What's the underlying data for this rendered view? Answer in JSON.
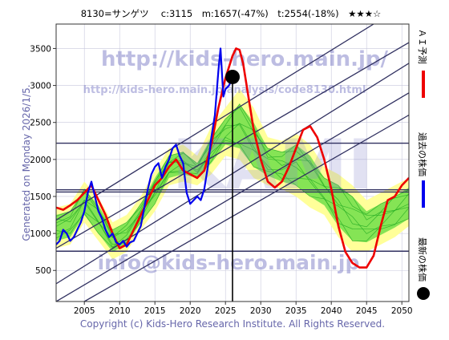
{
  "chart_data": {
    "type": "line",
    "title": "8130=サンゲツ　 c:3115　m:1657(-47%)　t:2554(-18%)　★★★☆",
    "xlabel": "",
    "ylabel": "",
    "x_ticks": [
      2005,
      2010,
      2015,
      2020,
      2025,
      2030,
      2035,
      2040,
      2045,
      2050
    ],
    "y_ticks": [
      500,
      1000,
      1500,
      2000,
      2500,
      3000,
      3500
    ],
    "xlim": [
      2001,
      2051
    ],
    "ylim": [
      80,
      3830
    ],
    "grid": true,
    "legend": "right",
    "current_point": {
      "x": 2026.0,
      "y": 3115
    },
    "current_marker_line": {
      "x": 2026.0
    },
    "horizontal_levels": [
      2220,
      1590,
      1560,
      760
    ],
    "diagonal_channels": [
      {
        "from": [
          2001,
          1180
        ],
        "to": [
          2046,
          3830
        ]
      },
      {
        "from": [
          2001,
          800
        ],
        "to": [
          2051,
          3580
        ]
      },
      {
        "from": [
          2001,
          320
        ],
        "to": [
          2051,
          3300
        ]
      },
      {
        "from": [
          2001,
          80
        ],
        "to": [
          2051,
          2900
        ]
      },
      {
        "from": [
          2005,
          80
        ],
        "to": [
          2051,
          2600
        ]
      }
    ],
    "band_range": [
      [
        2001,
        800,
        1350
      ],
      [
        2003,
        850,
        1400
      ],
      [
        2005,
        1150,
        1700
      ],
      [
        2007,
        900,
        1480
      ],
      [
        2009,
        650,
        1150
      ],
      [
        2011,
        750,
        1250
      ],
      [
        2013,
        1050,
        1500
      ],
      [
        2015,
        1300,
        1850
      ],
      [
        2017,
        1650,
        2150
      ],
      [
        2019,
        1700,
        2200
      ],
      [
        2021,
        1650,
        2050
      ],
      [
        2023,
        1800,
        2450
      ],
      [
        2025,
        2050,
        2700
      ],
      [
        2027,
        2000,
        2950
      ],
      [
        2029,
        1750,
        2700
      ],
      [
        2031,
        1650,
        2300
      ],
      [
        2033,
        1600,
        2250
      ],
      [
        2035,
        1500,
        2350
      ],
      [
        2037,
        1350,
        2200
      ],
      [
        2039,
        1250,
        1900
      ],
      [
        2041,
        950,
        1800
      ],
      [
        2043,
        750,
        1650
      ],
      [
        2045,
        750,
        1450
      ],
      [
        2047,
        850,
        1550
      ],
      [
        2049,
        950,
        1650
      ],
      [
        2051,
        1100,
        1750
      ]
    ],
    "band_core": [
      [
        2001,
        900,
        1250
      ],
      [
        2003,
        950,
        1300
      ],
      [
        2005,
        1250,
        1600
      ],
      [
        2007,
        1000,
        1380
      ],
      [
        2009,
        750,
        1050
      ],
      [
        2011,
        850,
        1150
      ],
      [
        2013,
        1150,
        1400
      ],
      [
        2015,
        1400,
        1750
      ],
      [
        2017,
        1750,
        2050
      ],
      [
        2019,
        1800,
        2100
      ],
      [
        2021,
        1750,
        1950
      ],
      [
        2023,
        1950,
        2300
      ],
      [
        2025,
        2200,
        2550
      ],
      [
        2027,
        2150,
        2750
      ],
      [
        2029,
        1900,
        2500
      ],
      [
        2031,
        1780,
        2150
      ],
      [
        2033,
        1700,
        2100
      ],
      [
        2035,
        1650,
        2200
      ],
      [
        2037,
        1500,
        2050
      ],
      [
        2039,
        1380,
        1750
      ],
      [
        2041,
        1100,
        1650
      ],
      [
        2043,
        900,
        1500
      ],
      [
        2045,
        880,
        1300
      ],
      [
        2047,
        980,
        1400
      ],
      [
        2049,
        1080,
        1500
      ],
      [
        2051,
        1200,
        1620
      ]
    ],
    "series": [
      {
        "name": "ＡＩ予測",
        "color": "#ee0000",
        "x": [
          2001,
          2002,
          2003,
          2004,
          2005,
          2006,
          2007,
          2008,
          2009,
          2010,
          2011,
          2012,
          2013,
          2014,
          2015,
          2016,
          2017,
          2018,
          2019,
          2020,
          2021,
          2022,
          2023,
          2024,
          2025,
          2026,
          2026.5,
          2027,
          2027.5,
          2028,
          2028.5,
          2029,
          2030,
          2031,
          2032,
          2033,
          2034,
          2035,
          2036,
          2037,
          2038,
          2039,
          2040,
          2041,
          2042,
          2043,
          2044,
          2045,
          2046,
          2047,
          2048,
          2049,
          2050,
          2051
        ],
        "values": [
          1350,
          1320,
          1380,
          1450,
          1550,
          1650,
          1450,
          1250,
          1000,
          800,
          850,
          1050,
          1250,
          1450,
          1650,
          1750,
          1900,
          2000,
          1850,
          1800,
          1750,
          1850,
          2200,
          2700,
          3100,
          3400,
          3500,
          3480,
          3300,
          3000,
          2700,
          2400,
          2000,
          1700,
          1620,
          1700,
          1900,
          2150,
          2400,
          2450,
          2300,
          2000,
          1600,
          1100,
          750,
          600,
          540,
          540,
          700,
          1100,
          1450,
          1500,
          1650,
          1750
        ]
      },
      {
        "name": "過去の株価",
        "color": "#0000ee",
        "x": [
          2001,
          2001.5,
          2002,
          2002.5,
          2003,
          2003.5,
          2004,
          2004.5,
          2005,
          2005.5,
          2006,
          2006.5,
          2007,
          2007.5,
          2008,
          2008.5,
          2009,
          2009.5,
          2010,
          2010.5,
          2011,
          2011.5,
          2012,
          2012.5,
          2013,
          2013.5,
          2014,
          2014.5,
          2015,
          2015.5,
          2016,
          2016.5,
          2017,
          2017.5,
          2018,
          2018.5,
          2019,
          2019.5,
          2020,
          2020.5,
          2021,
          2021.5,
          2022,
          2022.5,
          2023,
          2023.5,
          2024,
          2024.3,
          2024.7,
          2025,
          2025.5,
          2026
        ],
        "values": [
          850,
          900,
          1050,
          1000,
          900,
          950,
          1050,
          1150,
          1300,
          1550,
          1700,
          1500,
          1300,
          1200,
          1050,
          950,
          1000,
          880,
          850,
          900,
          820,
          880,
          900,
          1000,
          1100,
          1350,
          1600,
          1800,
          1900,
          1950,
          1750,
          1900,
          2000,
          2150,
          2200,
          2050,
          1950,
          1550,
          1400,
          1450,
          1500,
          1450,
          1600,
          1900,
          2300,
          2600,
          3200,
          3500,
          2850,
          2950,
          3000,
          3100
        ]
      },
      {
        "name": "最新の株価",
        "color": "#000000",
        "x": [
          2026.0
        ],
        "values": [
          3115
        ]
      }
    ]
  },
  "watermarks": {
    "url_top": "http://kids-hero.main.jp/",
    "url_mid": "http://kids-hero.main.jp/analysis/code8130.html",
    "big_text": "KAMI",
    "email": "info@kids-hero.main.jp"
  },
  "side_label": "Generated on Monday 2026/1/5.",
  "copyright": "Copyright (c) Kids-Hero Research Institute. All Rights Reserved.",
  "legend": {
    "ai_label": "ＡＩ予測",
    "past_label": "過去の株価",
    "latest_label": "最新の株価"
  },
  "colors": {
    "plot_bg": "#ffffff",
    "band_range": "#ffff99",
    "band_core": "#66dd44",
    "grid": "#c8c8dc",
    "channel": "#303060",
    "level": "#303060",
    "watermark": "#8888cc"
  }
}
